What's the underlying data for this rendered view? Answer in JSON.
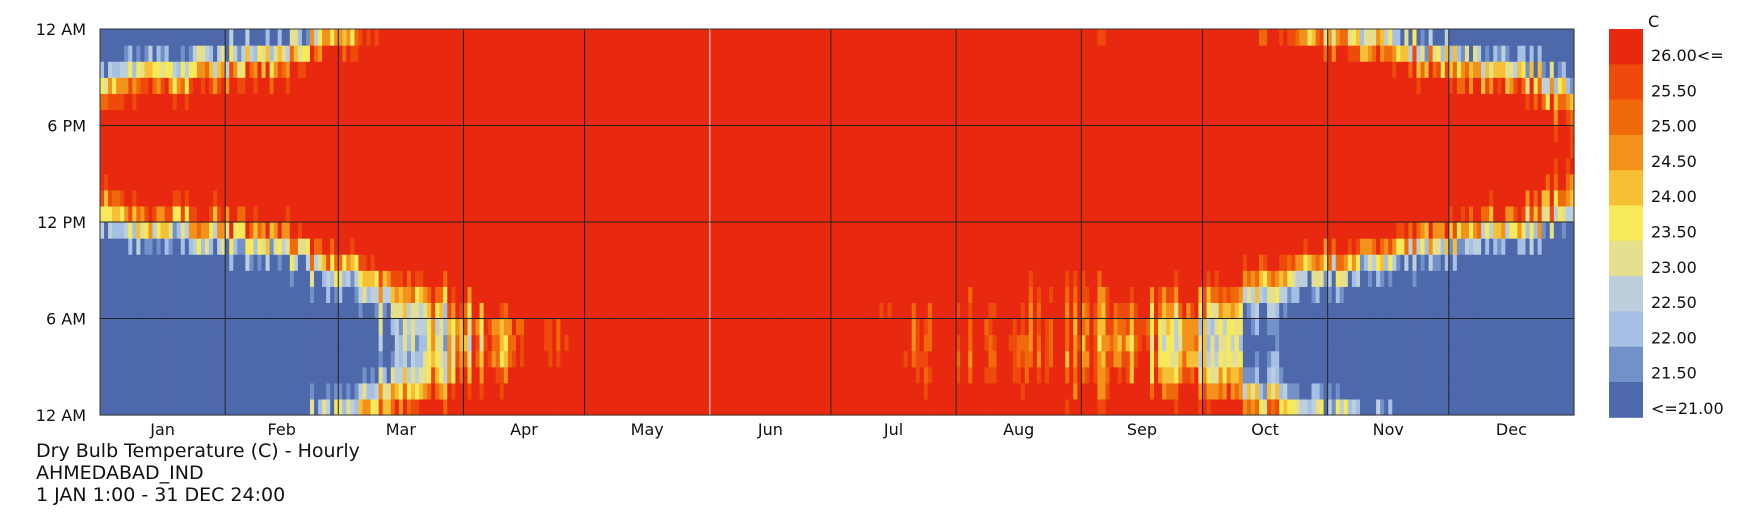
{
  "chart_data": {
    "type": "heatmap",
    "title": "Dry Bulb Temperature (C) - Hourly",
    "subtitle": "AHMEDABAD_IND",
    "period": "1 JAN 1:00 - 31 DEC 24:00",
    "x_axis": {
      "months": [
        "Jan",
        "Feb",
        "Mar",
        "Apr",
        "May",
        "Jun",
        "Jul",
        "Aug",
        "Sep",
        "Oct",
        "Nov",
        "Dec"
      ],
      "days_per_month": [
        31,
        28,
        31,
        30,
        31,
        30,
        31,
        31,
        30,
        31,
        30,
        31
      ],
      "range_days": [
        1,
        365
      ]
    },
    "y_axis": {
      "tick_labels": [
        "12 AM",
        "6 AM",
        "12 PM",
        "6 PM",
        "12 AM"
      ],
      "range_hours": [
        0,
        24
      ]
    },
    "legend": {
      "unit": "C",
      "placement": "right",
      "bins": [
        {
          "label": "26.00<=",
          "color": "#e8290f"
        },
        {
          "label": "25.50",
          "color": "#ee4a0c"
        },
        {
          "label": "25.00",
          "color": "#f06a0b"
        },
        {
          "label": "24.50",
          "color": "#f2921a"
        },
        {
          "label": "24.00",
          "color": "#f7c034"
        },
        {
          "label": "23.50",
          "color": "#f7ea5a"
        },
        {
          "label": "23.00",
          "color": "#e4e08f"
        },
        {
          "label": "22.50",
          "color": "#bccfdc"
        },
        {
          "label": "22.00",
          "color": "#a6bfe5"
        },
        {
          "label": "21.50",
          "color": "#7391c9"
        },
        {
          "label": "<=21.00",
          "color": "#4d69ab"
        }
      ]
    },
    "series_summary": [
      {
        "period": "Jan",
        "night_c": "<=21.00",
        "afternoon_c": "26.00<="
      },
      {
        "period": "Feb",
        "night_c": "<=21.00",
        "afternoon_c": "26.00<="
      },
      {
        "period": "Mar",
        "night_c": "21.50-24.50",
        "afternoon_c": "26.00<="
      },
      {
        "period": "Apr",
        "night_c": "24.00-26.00<=",
        "afternoon_c": "26.00<="
      },
      {
        "period": "May",
        "night_c": "26.00<=",
        "afternoon_c": "26.00<="
      },
      {
        "period": "Jun",
        "night_c": "26.00<=",
        "afternoon_c": "26.00<="
      },
      {
        "period": "Jul",
        "night_c": "26.00<=",
        "afternoon_c": "26.00<="
      },
      {
        "period": "Aug",
        "night_c": "26.00<=",
        "afternoon_c": "26.00<="
      },
      {
        "period": "Sep",
        "night_c": "25.00-26.00<=",
        "afternoon_c": "26.00<="
      },
      {
        "period": "Oct",
        "night_c": "22.00-25.00",
        "afternoon_c": "26.00<="
      },
      {
        "period": "Nov",
        "night_c": "<=21.00",
        "afternoon_c": "26.00<="
      },
      {
        "period": "Dec",
        "night_c": "<=21.00",
        "afternoon_c": "25.50-26.00<="
      }
    ]
  }
}
